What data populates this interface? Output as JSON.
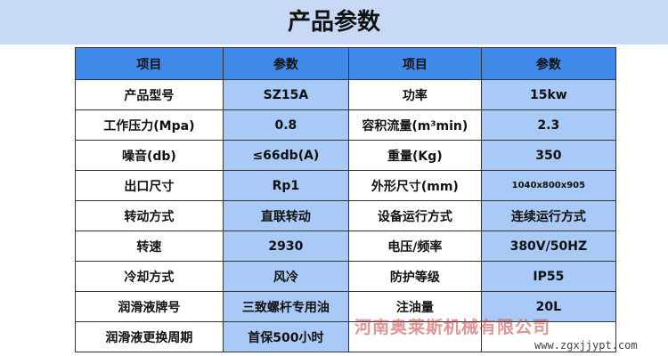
{
  "title": "产品参数",
  "headers": [
    "项目",
    "参数",
    "项目",
    "参数"
  ],
  "rows": [
    [
      "产品型号",
      "SZ15A",
      "功率",
      "15kw"
    ],
    [
      "工作压力(Mpa)",
      "0.8",
      "容积流量(m³min)",
      "2.3"
    ],
    [
      "噪音(db)",
      "≤66db(A)",
      "重量(Kg)",
      "350"
    ],
    [
      "出口尺寸",
      "Rp1",
      "外形尺寸(mm)",
      "1040x800x905"
    ],
    [
      "转动方式",
      "直联转动",
      "设备运行方式",
      "连续运行方式"
    ],
    [
      "转速",
      "2930",
      "电压/频率",
      "380V/50HZ"
    ],
    [
      "冷却方式",
      "风冷",
      "防护等级",
      "IP55"
    ],
    [
      "润滑液牌号",
      "三致螺杆专用油",
      "注油量",
      "20L"
    ],
    [
      "润滑液更换周期",
      "首保500小时",
      "",
      ""
    ]
  ],
  "watermark": "河南奥莱斯机械有限公司",
  "url": "www.zgxjjypt.com"
}
